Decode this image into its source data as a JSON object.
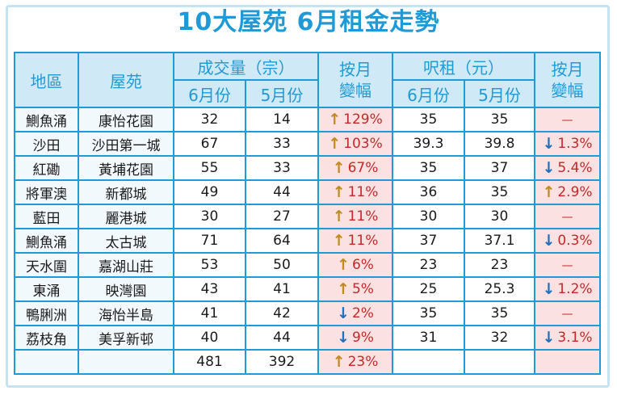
{
  "title": "10大屋苑 6月租金走勢",
  "headers": {
    "district": "地區",
    "estate": "屋苑",
    "volume": "成交量（宗）",
    "rent": "呎租（元）",
    "change": "按月變幅",
    "june": "6月份",
    "may": "5月份"
  },
  "rows": [
    {
      "district": "鰂魚涌",
      "estate": "康怡花園",
      "vol_jun": "32",
      "vol_may": "14",
      "vol_dir": "up",
      "vol_chg": "129%",
      "rent_jun": "35",
      "rent_may": "35",
      "rent_dir": "none",
      "rent_chg": "—"
    },
    {
      "district": "沙田",
      "estate": "沙田第一城",
      "vol_jun": "67",
      "vol_may": "33",
      "vol_dir": "up",
      "vol_chg": "103%",
      "rent_jun": "39.3",
      "rent_may": "39.8",
      "rent_dir": "down",
      "rent_chg": "1.3%"
    },
    {
      "district": "紅磡",
      "estate": "黃埔花園",
      "vol_jun": "55",
      "vol_may": "33",
      "vol_dir": "up",
      "vol_chg": "67%",
      "rent_jun": "35",
      "rent_may": "37",
      "rent_dir": "down",
      "rent_chg": "5.4%"
    },
    {
      "district": "將軍澳",
      "estate": "新都城",
      "vol_jun": "49",
      "vol_may": "44",
      "vol_dir": "up",
      "vol_chg": "11%",
      "rent_jun": "36",
      "rent_may": "35",
      "rent_dir": "up",
      "rent_chg": "2.9%"
    },
    {
      "district": "藍田",
      "estate": "麗港城",
      "vol_jun": "30",
      "vol_may": "27",
      "vol_dir": "up",
      "vol_chg": "11%",
      "rent_jun": "30",
      "rent_may": "30",
      "rent_dir": "none",
      "rent_chg": "—"
    },
    {
      "district": "鰂魚涌",
      "estate": "太古城",
      "vol_jun": "71",
      "vol_may": "64",
      "vol_dir": "up",
      "vol_chg": "11%",
      "rent_jun": "37",
      "rent_may": "37.1",
      "rent_dir": "down",
      "rent_chg": "0.3%"
    },
    {
      "district": "天水圍",
      "estate": "嘉湖山莊",
      "vol_jun": "53",
      "vol_may": "50",
      "vol_dir": "up",
      "vol_chg": "6%",
      "rent_jun": "23",
      "rent_may": "23",
      "rent_dir": "none",
      "rent_chg": "—"
    },
    {
      "district": "東涌",
      "estate": "映灣園",
      "vol_jun": "43",
      "vol_may": "41",
      "vol_dir": "up",
      "vol_chg": "5%",
      "rent_jun": "25",
      "rent_may": "25.3",
      "rent_dir": "down",
      "rent_chg": "1.2%"
    },
    {
      "district": "鴨脷洲",
      "estate": "海怡半島",
      "vol_jun": "41",
      "vol_may": "42",
      "vol_dir": "down",
      "vol_chg": "2%",
      "rent_jun": "35",
      "rent_may": "35",
      "rent_dir": "none",
      "rent_chg": "—"
    },
    {
      "district": "荔枝角",
      "estate": "美孚新邨",
      "vol_jun": "40",
      "vol_may": "44",
      "vol_dir": "down",
      "vol_chg": "9%",
      "rent_jun": "31",
      "rent_may": "32",
      "rent_dir": "down",
      "rent_chg": "3.1%"
    }
  ],
  "total": {
    "vol_jun": "481",
    "vol_may": "392",
    "vol_dir": "up",
    "vol_chg": "23%"
  },
  "colors": {
    "accent": "#1f9ad6",
    "header_bg": "#cfe9f6",
    "change_bg": "#fbe1e1",
    "change_text": "#c62828",
    "up_arrow": "#c08a1e",
    "down_arrow": "#1f6fbf"
  },
  "icons": {
    "up": "arrow-up-icon",
    "down": "arrow-down-icon"
  }
}
